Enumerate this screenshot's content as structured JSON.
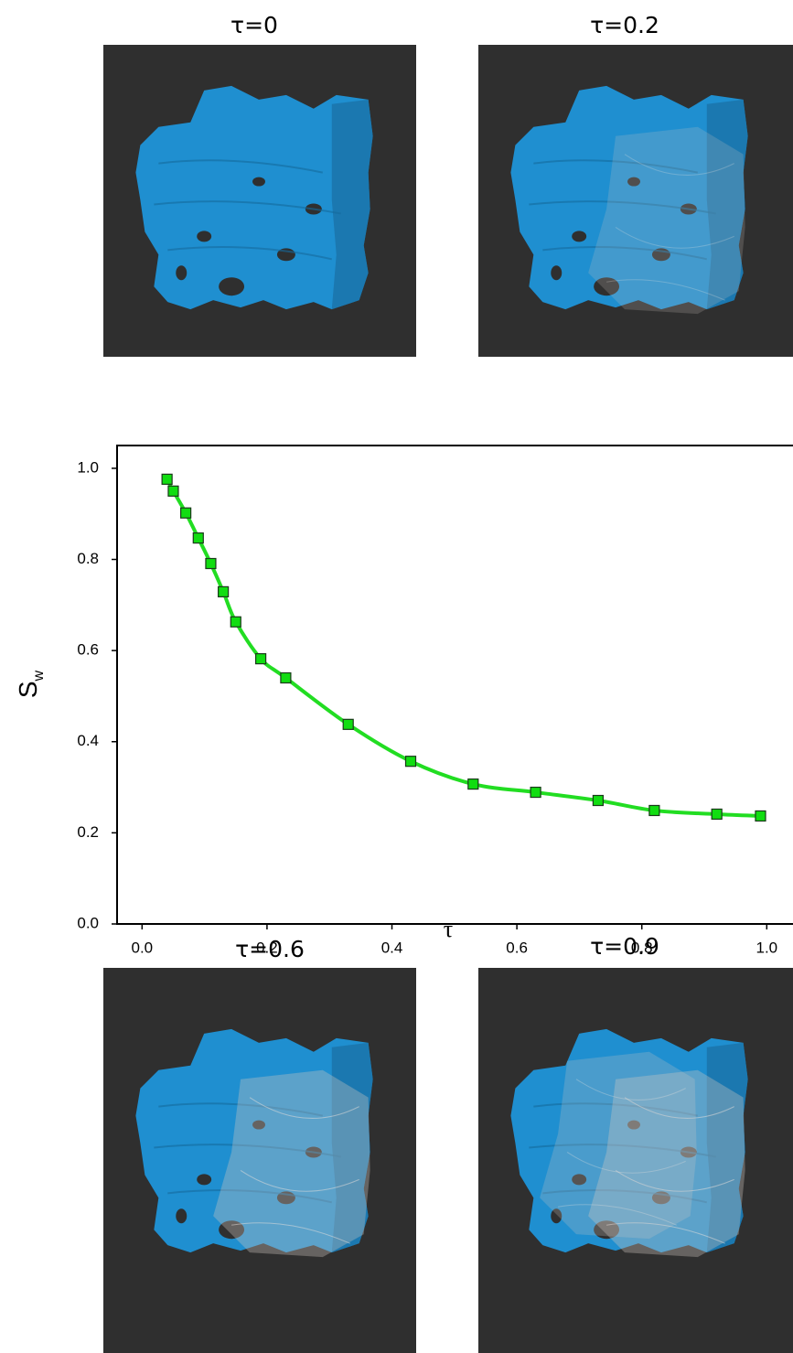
{
  "panels": [
    {
      "label": "τ=0"
    },
    {
      "label": "τ=0.2"
    },
    {
      "label": "τ=0.6"
    },
    {
      "label": "τ=0.9"
    }
  ],
  "chart_data": {
    "type": "line",
    "x_label": "τ",
    "y_label": "S",
    "y_label_subscript": "w",
    "x": [
      0.04,
      0.05,
      0.07,
      0.09,
      0.11,
      0.13,
      0.15,
      0.19,
      0.23,
      0.33,
      0.43,
      0.53,
      0.63,
      0.73,
      0.82,
      0.92,
      0.99
    ],
    "series": [
      {
        "color": "#22dd22",
        "marker_color": "#11dd11",
        "values": [
          0.976,
          0.95,
          0.902,
          0.847,
          0.791,
          0.729,
          0.663,
          0.582,
          0.54,
          0.438,
          0.357,
          0.307,
          0.289,
          0.271,
          0.249,
          0.241,
          0.237
        ]
      }
    ],
    "xlim": [
      -0.04,
      1.042
    ],
    "ylim": [
      0,
      1.05
    ],
    "xticks": [
      {
        "value": 0,
        "label": "0.0"
      },
      0.2,
      0.4,
      0.6,
      0.8,
      {
        "value": 1,
        "label": "1.0"
      }
    ],
    "yticks": [
      {
        "value": 0,
        "label": "0.0"
      },
      0.2,
      0.4,
      0.6,
      0.8,
      {
        "value": 1,
        "label": "1.0"
      }
    ]
  }
}
